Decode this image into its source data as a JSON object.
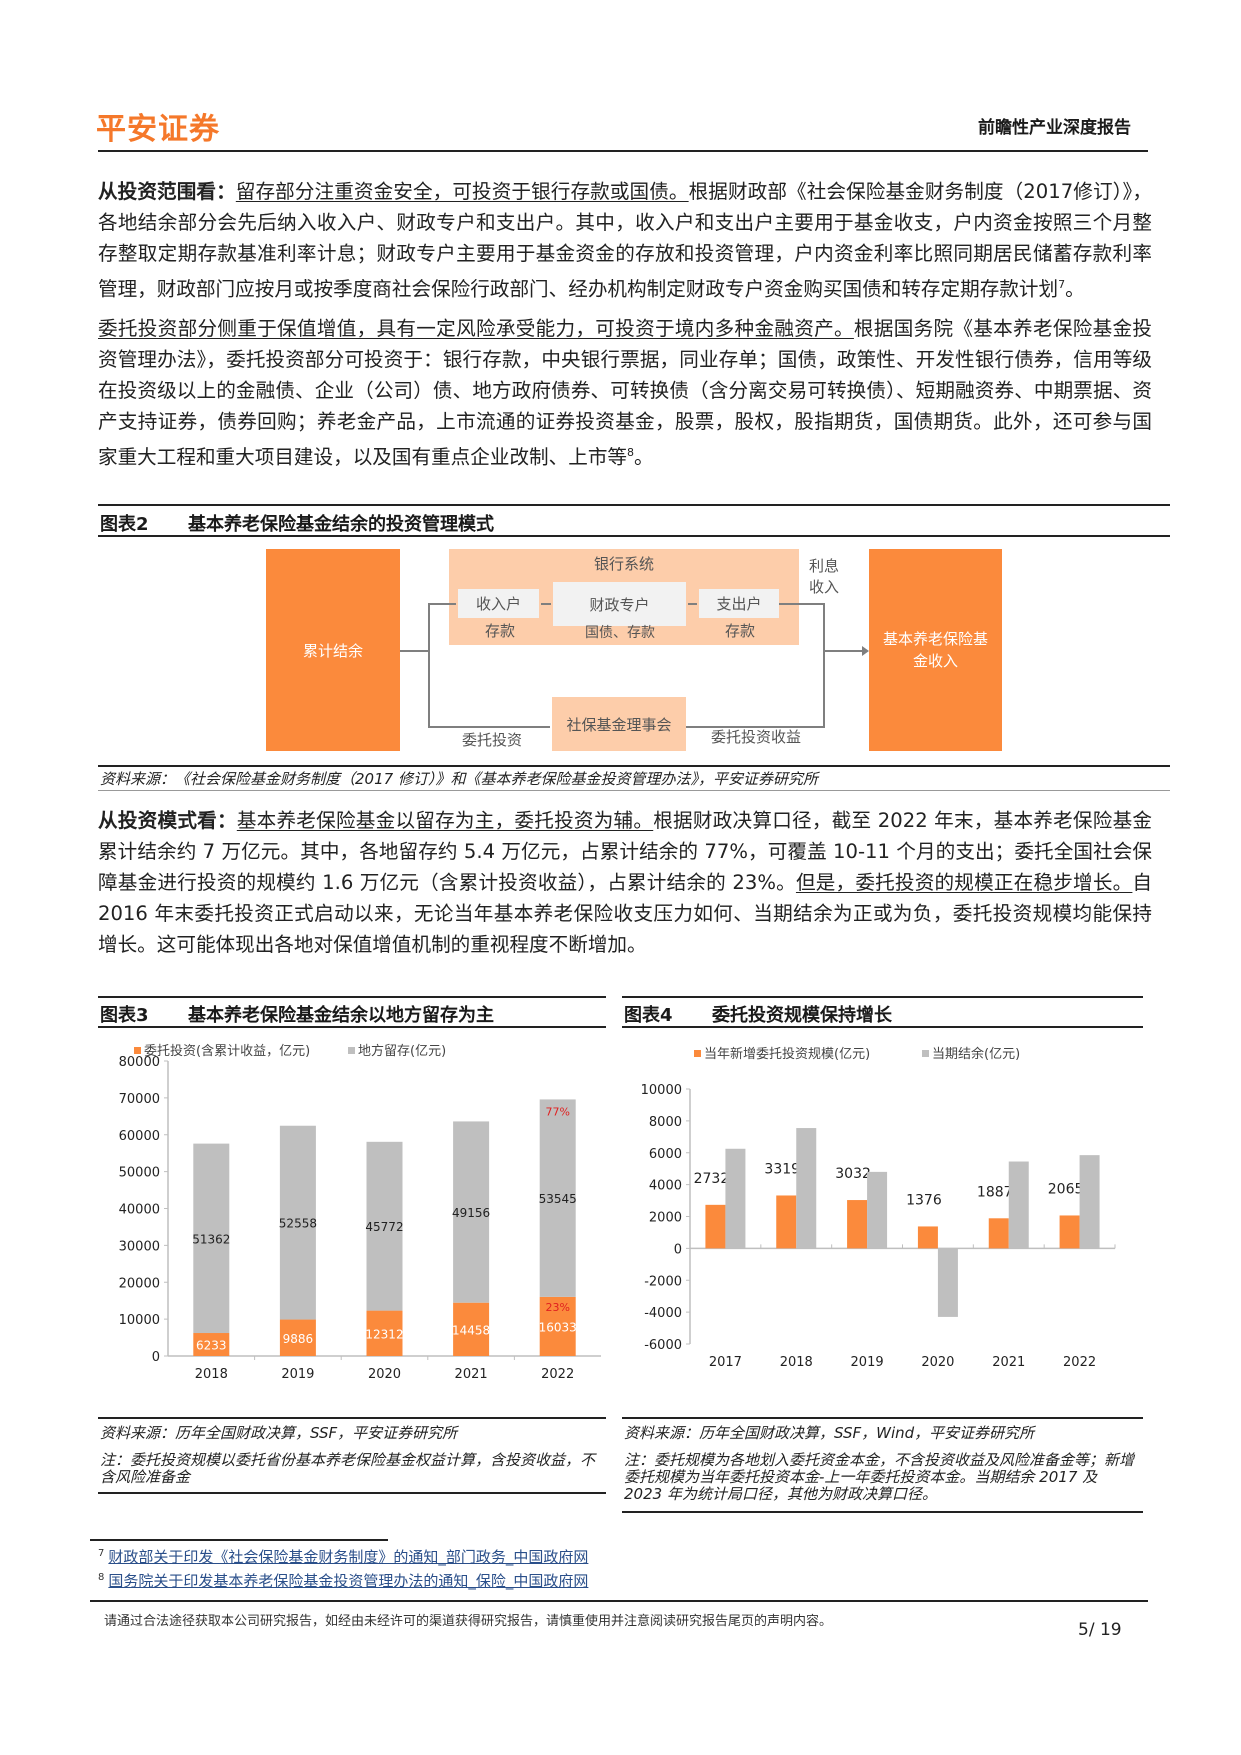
{
  "header": {
    "logo": "平安证券",
    "doc_type": "前瞻性产业深度报告"
  },
  "paragraphs": {
    "p1": {
      "lead": "从投资范围看：",
      "underline": "留存部分注重资金安全，可投资于银行存款或国债。",
      "text": "根据财政部《社会保险基金财务制度（2017修订）》，各地结余部分会先后纳入收入户、财政专户和支出户。其中，收入户和支出户主要用于基金收支，户内资金按照三个月整存整取定期存款基准利率计息；财政专户主要用于基金资金的存放和投资管理，户内资金利率比照同期居民储蓄存款利率管理，财政部门应按月或按季度商社会保险行政部门、经办机构制定财政专户资金购买国债和转存定期存款计划",
      "sup": "7",
      "end": "。"
    },
    "p2": {
      "underline": "委托投资部分侧重于保值增值，具有一定风险承受能力，可投资于境内多种金融资产。",
      "text": "根据国务院《基本养老保险基金投资管理办法》，委托投资部分可投资于：银行存款，中央银行票据，同业存单；国债，政策性、开发性银行债券，信用等级在投资级以上的金融债、企业（公司）债、地方政府债券、可转换债（含分离交易可转换债）、短期融资券、中期票据、资产支持证券，债券回购；养老金产品，上市流通的证券投资基金，股票，股权，股指期货，国债期货。此外，还可参与国家重大工程和重大项目建设，以及国有重点企业改制、上市等",
      "sup": "8",
      "end": "。"
    },
    "p3": {
      "lead": "从投资模式看：",
      "underline1": "基本养老保险基金以留存为主，委托投资为辅。",
      "text1": "根据财政决算口径，截至 2022 年末，基本养老保险基金累计结余约 7 万亿元。其中，各地留存约 5.4 万亿元，占累计结余的 77%，可覆盖 10-11 个月的支出；委托全国社会保障基金进行投资的规模约 1.6 万亿元（含累计投资收益），占累计结余的 23%。",
      "underline2": "但是，委托投资的规模正在稳步增长。",
      "text2": "自 2016 年末委托投资正式启动以来，无论当年基本养老保险收支压力如何、当期结余为正或为负，委托投资规模均能保持增长。这可能体现出各地对保值增值机制的重视程度不断增加。"
    }
  },
  "figure2": {
    "number": "图表2",
    "title": "基本养老保险基金结余的投资管理模式",
    "diagram": {
      "accumulated": "累计结余",
      "bank_system": "银行系统",
      "income_account": "收入户",
      "fiscal_account": "财政专户",
      "expense_account": "支出户",
      "deposit1": "存款",
      "bonds_deposit": "国债、存款",
      "deposit2": "存款",
      "interest": "利息收入",
      "fund_income": "基本养老保险基金收入",
      "ssf": "社保基金理事会",
      "entrusted": "委托投资",
      "entrusted_return": "委托投资收益"
    },
    "source": "资料来源：《社会保险基金财务制度（2017 修订）》和《基本养老保险基金投资管理办法》，平安证券研究所"
  },
  "figure3": {
    "number": "图表3",
    "title": "基本养老保险基金结余以地方留存为主",
    "source": "资料来源：历年全国财政决算，SSF，平安证券研究所",
    "note": "注：委托投资规模以委托省份基本养老保险基金权益计算，含投资收益，不含风险准备金"
  },
  "figure4": {
    "number": "图表4",
    "title": "委托投资规模保持增长",
    "source": "资料来源：历年全国财政决算，SSF，Wind，平安证券研究所",
    "note": "注：委托规模为各地划入委托资金本金，不含投资收益及风险准备金等；新增委托规模为当年委托投资本金-上一年委托投资本金。当期结余 2017 及 2023 年为统计局口径，其他为财政决算口径。"
  },
  "chart_data": [
    {
      "type": "bar",
      "stacked": true,
      "categories": [
        "2018",
        "2019",
        "2020",
        "2021",
        "2022"
      ],
      "series": [
        {
          "name": "委托投资(含累计收益，亿元)",
          "color": "#fb8a3c",
          "values": [
            6233,
            9886,
            12312,
            14458,
            16033
          ]
        },
        {
          "name": "地方留存(亿元)",
          "color": "#bfbfbf",
          "values": [
            51362,
            52558,
            45772,
            49156,
            53545
          ]
        }
      ],
      "annotations": [
        {
          "category": "2022",
          "series": "地方留存(亿元)",
          "text": "77%"
        },
        {
          "category": "2022",
          "series": "委托投资(含累计收益，亿元)",
          "text": "23%"
        }
      ],
      "annotation_color": "#e02020",
      "ylim": [
        0,
        80000
      ],
      "yticks": [
        0,
        10000,
        20000,
        30000,
        40000,
        50000,
        60000,
        70000,
        80000
      ],
      "legend": "top",
      "grid": false
    },
    {
      "type": "bar",
      "categories": [
        "2017",
        "2018",
        "2019",
        "2020",
        "2021",
        "2022"
      ],
      "series": [
        {
          "name": "当年新增委托投资规模(亿元)",
          "color": "#fb8a3c",
          "values": [
            2732,
            3319,
            3032,
            1376,
            1887,
            2065
          ],
          "labeled": true
        },
        {
          "name": "当期结余(亿元)",
          "color": "#bfbfbf",
          "values": [
            6250,
            7550,
            4800,
            -4300,
            5450,
            5850
          ],
          "labeled": false
        }
      ],
      "ylim": [
        -6000,
        10000
      ],
      "yticks": [
        -6000,
        -4000,
        -2000,
        0,
        2000,
        4000,
        6000,
        8000,
        10000
      ],
      "legend": "top",
      "grid": false
    }
  ],
  "footnotes": [
    {
      "num": "7",
      "text": "财政部关于印发《社会保险基金财务制度》的通知_部门政务_中国政府网"
    },
    {
      "num": "8",
      "text": "国务院关于印发基本养老保险基金投资管理办法的通知_保险_中国政府网"
    }
  ],
  "footer": {
    "disclaimer": "请通过合法途径获取本公司研究报告，如经由未经许可的渠道获得研究报告，请慎重使用并注意阅读研究报告尾页的声明内容。",
    "page": "5/ 19"
  }
}
